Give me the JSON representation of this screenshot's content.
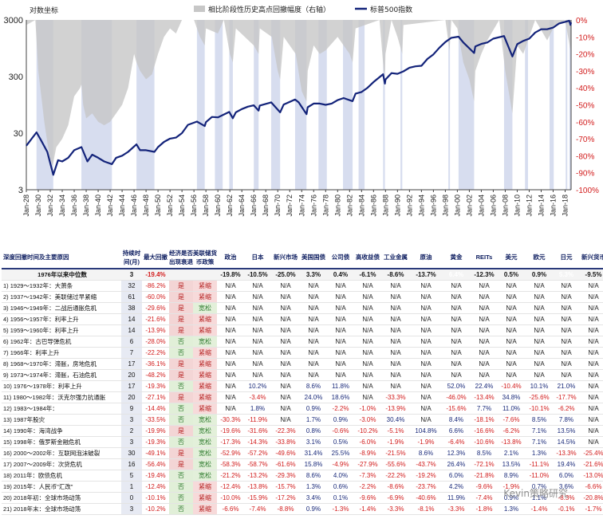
{
  "chart_data": {
    "type": "line",
    "legend": {
      "shade_label": "相比阶段性历史高点回撤幅度（右轴）",
      "line_label": "标普500指数"
    },
    "left_axis": {
      "label": "对数坐标",
      "scale": "log",
      "ticks": [
        "3000",
        "300",
        "30",
        "3"
      ],
      "tick_values": [
        3000,
        300,
        30,
        3
      ]
    },
    "right_axis": {
      "ticks": [
        "0%",
        "-10%",
        "-20%",
        "-30%",
        "-40%",
        "-50%",
        "-60%",
        "-70%",
        "-80%",
        "-90%",
        "-100%"
      ],
      "range": [
        -1.0,
        0.0
      ]
    },
    "x_ticks": [
      "Jan-28",
      "Jan-30",
      "Jan-32",
      "Jan-34",
      "Jan-36",
      "Jan-38",
      "Jan-40",
      "Jan-42",
      "Jan-44",
      "Jan-46",
      "Jan-48",
      "Jan-50",
      "Jan-52",
      "Jan-54",
      "Jan-56",
      "Jan-58",
      "Jan-60",
      "Jan-62",
      "Jan-64",
      "Jan-66",
      "Jan-68",
      "Jan-70",
      "Jan-72",
      "Jan-74",
      "Jan-76",
      "Jan-78",
      "Jan-80",
      "Jan-82",
      "Jan-84",
      "Jan-86",
      "Jan-88",
      "Jan-90",
      "Jan-92",
      "Jan-94",
      "Jan-96",
      "Jan-98",
      "Jan-00",
      "Jan-02",
      "Jan-04",
      "Jan-06",
      "Jan-08",
      "Jan-10",
      "Jan-12",
      "Jan-14",
      "Jan-16",
      "Jan-18"
    ],
    "x_range": [
      1928,
      2019
    ],
    "series": [
      {
        "name": "标普500指数",
        "x": [
          1928,
          1929.7,
          1930.5,
          1931.5,
          1932.5,
          1933.3,
          1934,
          1935,
          1936,
          1937.2,
          1938.2,
          1939,
          1940,
          1941,
          1942.3,
          1943,
          1944,
          1945,
          1946.4,
          1947,
          1948,
          1949.4,
          1950,
          1951,
          1952,
          1953,
          1954,
          1955,
          1956.5,
          1957.8,
          1958,
          1959,
          1960,
          1961.9,
          1962.5,
          1963,
          1964,
          1965,
          1966,
          1966.8,
          1967,
          1968.9,
          1970.4,
          1971,
          1972.9,
          1973.5,
          1974.8,
          1975,
          1976,
          1977,
          1978,
          1979,
          1980,
          1981,
          1982.5,
          1983,
          1984,
          1985,
          1986,
          1987.6,
          1987.9,
          1988,
          1989,
          1990,
          1991,
          1992,
          1993,
          1994,
          1995,
          1996,
          1997,
          1998,
          1999,
          2000.2,
          2001,
          2002.8,
          2003,
          2004,
          2005,
          2006,
          2007.8,
          2009.2,
          2010,
          2011,
          2012,
          2013,
          2014,
          2015,
          2016,
          2017,
          2018.7,
          2018.9,
          2019
        ],
        "y": [
          18,
          31,
          22,
          14,
          5.5,
          10,
          9.5,
          11,
          15,
          17,
          9.5,
          12.5,
          11,
          9.5,
          8.5,
          11,
          12,
          14,
          19,
          15,
          15,
          14,
          17,
          21,
          24,
          25,
          30,
          42,
          48,
          40,
          47,
          58,
          57,
          71,
          55,
          70,
          80,
          88,
          93,
          75,
          92,
          105,
          70,
          96,
          118,
          105,
          65,
          86,
          100,
          100,
          95,
          100,
          115,
          125,
          110,
          150,
          160,
          190,
          240,
          330,
          225,
          265,
          345,
          335,
          370,
          430,
          455,
          465,
          615,
          740,
          970,
          1220,
          1450,
          1520,
          1200,
          780,
          1020,
          1130,
          1200,
          1400,
          1560,
          680,
          1120,
          1280,
          1400,
          1800,
          2050,
          2050,
          2200,
          2600,
          2900,
          2450,
          2700
        ]
      }
    ],
    "drawdown": {
      "x": [
        1928,
        1929.5,
        1930,
        1930.5,
        1931,
        1931.5,
        1932,
        1932.4,
        1933,
        1934,
        1935,
        1936,
        1937,
        1937.2,
        1937.5,
        1938,
        1939,
        1940,
        1941,
        1942,
        1943,
        1944,
        1945,
        1946,
        1946.4,
        1947,
        1948,
        1949,
        1950,
        1951,
        1952,
        1953,
        1954,
        1956,
        1957,
        1957.8,
        1958,
        1960,
        1961,
        1962,
        1962.5,
        1963,
        1966,
        1966.8,
        1967,
        1969,
        1970,
        1970.4,
        1971,
        1973,
        1974,
        1974.8,
        1975,
        1976,
        1977,
        1978,
        1980,
        1981,
        1982,
        1982.5,
        1983,
        1987,
        1987.7,
        1987.9,
        1988,
        1989,
        1990,
        1990.8,
        1991,
        1998,
        1998.7,
        1999,
        2000,
        2001,
        2002,
        2002.8,
        2003,
        2004,
        2005,
        2007,
        2008,
        2009.2,
        2009.5,
        2010,
        2011,
        2012,
        2013,
        2015,
        2016,
        2018,
        2018.9,
        2019
      ],
      "y": [
        -0.03,
        0,
        -0.3,
        -0.45,
        -0.6,
        -0.72,
        -0.82,
        -0.86,
        -0.75,
        -0.7,
        -0.62,
        -0.45,
        -0.4,
        -0.38,
        -0.5,
        -0.58,
        -0.55,
        -0.6,
        -0.62,
        -0.6,
        -0.55,
        -0.5,
        -0.4,
        -0.2,
        -0.25,
        -0.3,
        -0.35,
        -0.32,
        -0.2,
        -0.1,
        -0.05,
        -0.08,
        0,
        0,
        -0.1,
        -0.15,
        -0.05,
        -0.08,
        0,
        -0.2,
        -0.25,
        -0.05,
        -0.15,
        -0.2,
        -0.05,
        -0.1,
        -0.3,
        -0.35,
        -0.1,
        -0.2,
        -0.42,
        -0.48,
        -0.3,
        -0.15,
        -0.2,
        -0.18,
        -0.1,
        -0.15,
        -0.2,
        -0.25,
        -0.05,
        0,
        -0.3,
        -0.33,
        -0.2,
        0,
        -0.1,
        -0.2,
        -0.03,
        0,
        -0.18,
        0,
        -0.05,
        -0.25,
        -0.35,
        -0.48,
        -0.3,
        -0.2,
        -0.12,
        0,
        -0.3,
        -0.55,
        -0.4,
        -0.15,
        -0.2,
        -0.1,
        0,
        -0.12,
        -0.05,
        0,
        -0.18,
        -0.05
      ]
    },
    "shaded_periods": [
      [
        1929.7,
        1932.5
      ],
      [
        1937.2,
        1942.3
      ],
      [
        1946.4,
        1949.4
      ],
      [
        1956.5,
        1957.8
      ],
      [
        1959.5,
        1960.8
      ],
      [
        1961.9,
        1962.5
      ],
      [
        1966,
        1966.8
      ],
      [
        1968.9,
        1970.4
      ],
      [
        1972.9,
        1974.8
      ],
      [
        1976.8,
        1978.2
      ],
      [
        1980.9,
        1982.5
      ],
      [
        1983.5,
        1984.5
      ],
      [
        1987.6,
        1987.9
      ],
      [
        1990.5,
        1990.8
      ],
      [
        1998.5,
        1998.7
      ],
      [
        2000.2,
        2002.8
      ],
      [
        2007.8,
        2009.2
      ],
      [
        2011.3,
        2011.8
      ],
      [
        2015.4,
        2016.1
      ],
      [
        2018.1,
        2018.3
      ],
      [
        2018.7,
        2018.9
      ]
    ]
  },
  "table": {
    "headers": {
      "cause": "深度回撤时间及主要原因",
      "duration": "持续时间(月)",
      "max_drawdown": "最大回撤",
      "recession": "经济是否出现衰退",
      "fed_policy": "美联储货币政策",
      "politics": "政治",
      "japan": "日本",
      "em": "新兴市场",
      "us_treasury": "美国国债",
      "corp_bond": "公司债",
      "hy_bond": "高收益债",
      "industrial_metals": "工业金属",
      "oil": "原油",
      "gold": "黄金",
      "reits": "REITs",
      "usd": "美元",
      "eur": "欧元",
      "jpy": "日元",
      "em_fx": "新兴货币"
    },
    "median_row": {
      "label": "1976年以来中位数",
      "duration": "3",
      "max_drawdown": "-19.4%",
      "values": [
        "-19.8%",
        "-10.5%",
        "-25.0%",
        "3.3%",
        "0.4%",
        "-6.1%",
        "-8.6%",
        "-13.7%",
        "6.4%",
        "-12.3%",
        "0.5%",
        "0.9%",
        "5.3%",
        "-9.5%"
      ]
    },
    "rows": [
      {
        "cause": "1) 1929～1932年：大萧条",
        "duration": "32",
        "mdd": "-86.2%",
        "rec": "是",
        "fed": "紧缩",
        "vals": [
          "N/A",
          "N/A",
          "N/A",
          "N/A",
          "N/A",
          "N/A",
          "N/A",
          "N/A",
          "N/A",
          "N/A",
          "N/A",
          "N/A",
          "N/A",
          "N/A"
        ]
      },
      {
        "cause": "2) 1937～1942年：美联储过早紧缩",
        "duration": "61",
        "mdd": "-60.0%",
        "rec": "是",
        "fed": "紧缩",
        "vals": [
          "N/A",
          "N/A",
          "N/A",
          "N/A",
          "N/A",
          "N/A",
          "N/A",
          "N/A",
          "N/A",
          "N/A",
          "N/A",
          "N/A",
          "N/A",
          "N/A"
        ]
      },
      {
        "cause": "3) 1946～1949年：二战后通胀危机",
        "duration": "38",
        "mdd": "-29.6%",
        "rec": "是",
        "fed": "宽松",
        "vals": [
          "N/A",
          "N/A",
          "N/A",
          "N/A",
          "N/A",
          "N/A",
          "N/A",
          "N/A",
          "N/A",
          "N/A",
          "N/A",
          "N/A",
          "N/A",
          "N/A"
        ]
      },
      {
        "cause": "4) 1956～1957年：利率上升",
        "duration": "14",
        "mdd": "-21.6%",
        "rec": "是",
        "fed": "紧缩",
        "vals": [
          "N/A",
          "N/A",
          "N/A",
          "N/A",
          "N/A",
          "N/A",
          "N/A",
          "N/A",
          "N/A",
          "N/A",
          "N/A",
          "N/A",
          "N/A",
          "N/A"
        ]
      },
      {
        "cause": "5) 1959～1960年：利率上升",
        "duration": "14",
        "mdd": "-13.9%",
        "rec": "是",
        "fed": "紧缩",
        "vals": [
          "N/A",
          "N/A",
          "N/A",
          "N/A",
          "N/A",
          "N/A",
          "N/A",
          "N/A",
          "N/A",
          "N/A",
          "N/A",
          "N/A",
          "N/A",
          "N/A"
        ]
      },
      {
        "cause": "6) 1962年：古巴导弹危机",
        "duration": "6",
        "mdd": "-28.0%",
        "rec": "否",
        "fed": "宽松",
        "vals": [
          "N/A",
          "N/A",
          "N/A",
          "N/A",
          "N/A",
          "N/A",
          "N/A",
          "N/A",
          "N/A",
          "N/A",
          "N/A",
          "N/A",
          "N/A",
          "N/A"
        ]
      },
      {
        "cause": "7) 1966年：利率上升",
        "duration": "7",
        "mdd": "-22.2%",
        "rec": "否",
        "fed": "紧缩",
        "vals": [
          "N/A",
          "N/A",
          "N/A",
          "N/A",
          "N/A",
          "N/A",
          "N/A",
          "N/A",
          "N/A",
          "N/A",
          "N/A",
          "N/A",
          "N/A",
          "N/A"
        ]
      },
      {
        "cause": "8) 1968～1970年：滞胀，房地危机",
        "duration": "17",
        "mdd": "-36.1%",
        "rec": "是",
        "fed": "紧缩",
        "vals": [
          "N/A",
          "N/A",
          "N/A",
          "N/A",
          "N/A",
          "N/A",
          "N/A",
          "N/A",
          "N/A",
          "N/A",
          "N/A",
          "N/A",
          "N/A",
          "N/A"
        ]
      },
      {
        "cause": "9) 1973～1974年：滞胀，石油危机",
        "duration": "20",
        "mdd": "-48.2%",
        "rec": "是",
        "fed": "紧缩",
        "vals": [
          "N/A",
          "N/A",
          "N/A",
          "N/A",
          "N/A",
          "N/A",
          "N/A",
          "N/A",
          "N/A",
          "N/A",
          "N/A",
          "N/A",
          "N/A",
          "N/A"
        ]
      },
      {
        "cause": "10) 1976～1978年：利率上升",
        "duration": "17",
        "mdd": "-19.3%",
        "rec": "否",
        "fed": "紧缩",
        "vals": [
          "N/A",
          "10.2%",
          "N/A",
          "8.6%",
          "11.8%",
          "N/A",
          "N/A",
          "N/A",
          "52.0%",
          "22.4%",
          "-10.4%",
          "10.1%",
          "21.0%",
          "N/A"
        ]
      },
      {
        "cause": "11) 1980～1982年：沃克尔强力抗通胀",
        "duration": "20",
        "mdd": "-27.1%",
        "rec": "是",
        "fed": "紧缩",
        "vals": [
          "N/A",
          "-3.4%",
          "N/A",
          "24.0%",
          "18.6%",
          "N/A",
          "-33.3%",
          "N/A",
          "-46.0%",
          "-13.4%",
          "34.8%",
          "-25.6%",
          "-17.7%",
          "N/A"
        ]
      },
      {
        "cause": "12) 1983～1984年：",
        "duration": "9",
        "mdd": "-14.4%",
        "rec": "否",
        "fed": "紧缩",
        "vals": [
          "N/A",
          "1.8%",
          "N/A",
          "0.9%",
          "-2.2%",
          "-1.0%",
          "-13.9%",
          "N/A",
          "-15.6%",
          "7.7%",
          "11.0%",
          "-10.1%",
          "-6.2%",
          "N/A"
        ]
      },
      {
        "cause": "13) 1987年股灾",
        "duration": "3",
        "mdd": "-33.5%",
        "rec": "否",
        "fed": "宽松",
        "vals": [
          "-30.3%",
          "-11.9%",
          "N/A",
          "1.7%",
          "0.9%",
          "-3.0%",
          "30.4%",
          "N/A",
          "8.4%",
          "-18.1%",
          "-7.6%",
          "8.5%",
          "7.8%",
          "N/A"
        ]
      },
      {
        "cause": "14) 1990年：海湾战争",
        "duration": "2",
        "mdd": "-19.9%",
        "rec": "是",
        "fed": "宽松",
        "vals": [
          "-19.6%",
          "-31.6%",
          "-22.3%",
          "0.8%",
          "-0.6%",
          "-10.2%",
          "-5.1%",
          "104.8%",
          "6.6%",
          "-16.6%",
          "-6.2%",
          "7.1%",
          "13.5%",
          "N/A"
        ]
      },
      {
        "cause": "15) 1998年：俄罗斯金融危机",
        "duration": "3",
        "mdd": "-19.3%",
        "rec": "否",
        "fed": "宽松",
        "vals": [
          "-17.3%",
          "-14.3%",
          "-33.8%",
          "3.1%",
          "0.5%",
          "-6.0%",
          "-1.9%",
          "-1.9%",
          "-6.4%",
          "-10.6%",
          "-13.8%",
          "7.1%",
          "14.5%",
          "N/A"
        ]
      },
      {
        "cause": "16) 2000～2002年：互联网泡沫破裂",
        "duration": "30",
        "mdd": "-49.1%",
        "rec": "是",
        "fed": "宽松",
        "vals": [
          "-52.9%",
          "-57.2%",
          "-49.6%",
          "31.4%",
          "25.5%",
          "-8.9%",
          "-21.5%",
          "8.6%",
          "12.3%",
          "8.5%",
          "2.1%",
          "1.3%",
          "-13.3%",
          "-25.4%"
        ]
      },
      {
        "cause": "17) 2007～2009年：次贷危机",
        "duration": "16",
        "mdd": "-56.4%",
        "rec": "是",
        "fed": "宽松",
        "vals": [
          "-58.3%",
          "-58.7%",
          "-61.6%",
          "15.8%",
          "-4.9%",
          "-27.9%",
          "-55.6%",
          "-43.7%",
          "26.4%",
          "-72.1%",
          "13.5%",
          "-11.1%",
          "19.4%",
          "-21.6%"
        ]
      },
      {
        "cause": "18) 2011年：欧债危机",
        "duration": "5",
        "mdd": "-19.4%",
        "rec": "否",
        "fed": "宽松",
        "vals": [
          "-21.2%",
          "-13.2%",
          "-29.3%",
          "8.6%",
          "4.0%",
          "-7.3%",
          "-22.2%",
          "-19.2%",
          "6.0%",
          "-21.8%",
          "8.9%",
          "-11.0%",
          "6.0%",
          "-13.0%"
        ]
      },
      {
        "cause": "19) 2015年：人民币\"汇改\"",
        "duration": "1",
        "mdd": "-12.4%",
        "rec": "否",
        "fed": "紧缩",
        "vals": [
          "-12.4%",
          "-13.8%",
          "-15.7%",
          "1.3%",
          "0.6%",
          "-2.2%",
          "-8.6%",
          "-23.7%",
          "4.2%",
          "-9.6%",
          "-1.9%",
          "0.7%",
          "3.6%",
          "-6.6%"
        ]
      },
      {
        "cause": "20) 2018年初：全球市场动荡",
        "duration": "0",
        "mdd": "-10.1%",
        "rec": "否",
        "fed": "紧缩",
        "vals": [
          "-10.0%",
          "-15.9%",
          "-17.2%",
          "3.4%",
          "0.1%",
          "-9.6%",
          "-6.9%",
          "-40.6%",
          "11.9%",
          "-7.4%",
          "0.9%",
          "1.1%",
          "-8.3%",
          "-20.8%"
        ]
      },
      {
        "cause": "21) 2018年末：全球市场动荡",
        "duration": "3",
        "mdd": "-10.2%",
        "rec": "否",
        "fed": "紧缩",
        "vals": [
          "-6.6%",
          "-7.4%",
          "-8.8%",
          "0.9%",
          "-1.3%",
          "-1.4%",
          "-3.3%",
          "-8.1%",
          "-3.3%",
          "-1.8%",
          "1.3%",
          "-1.4%",
          "-0.1%",
          "-1.7%"
        ]
      }
    ]
  },
  "watermark": "Kevin策略研究",
  "colors": {
    "line": "#13237a",
    "shade": "#c7c7c7",
    "period": "#c9d2ea",
    "axis_red": "#d21c1c"
  }
}
